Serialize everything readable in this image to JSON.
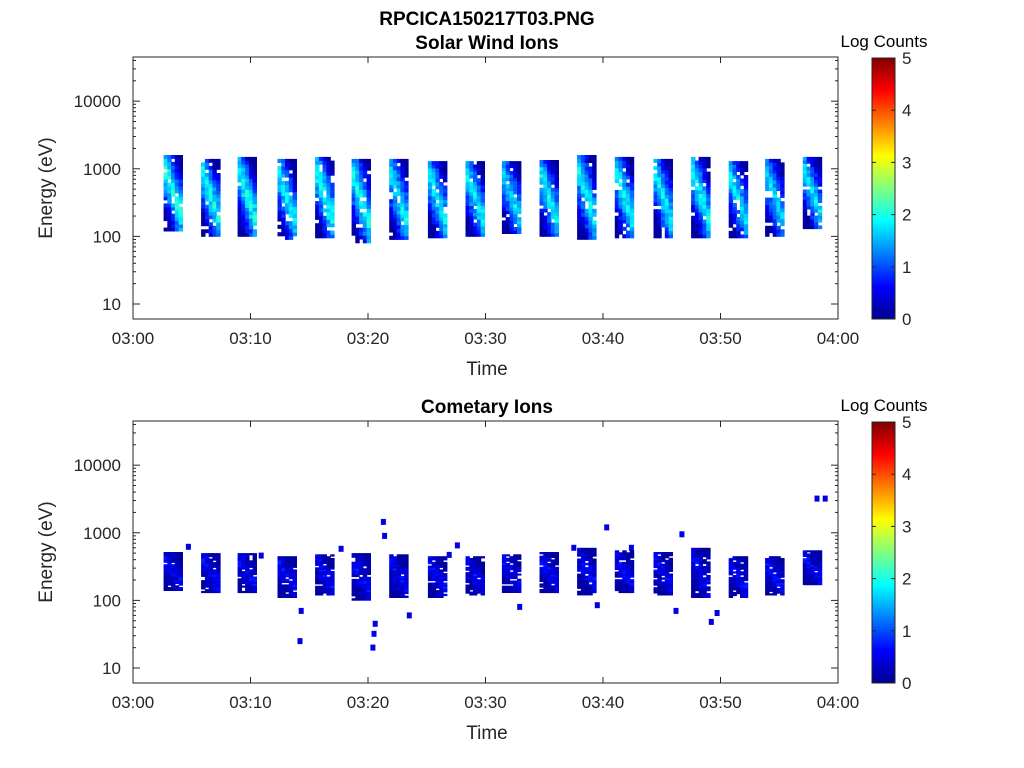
{
  "figure": {
    "title": "RPCICA150217T03.PNG"
  },
  "chart_data": [
    {
      "type": "heatmap",
      "title": "Solar Wind Ions",
      "xlabel": "Time",
      "ylabel": "Energy (eV)",
      "x_ticks": [
        "03:00",
        "03:10",
        "03:20",
        "03:30",
        "03:40",
        "03:50",
        "04:00"
      ],
      "x_range_minutes": [
        0,
        60
      ],
      "y_scale": "log",
      "y_ticks": [
        "10",
        "100",
        "1000",
        "10000"
      ],
      "y_range": [
        6,
        45000
      ],
      "colorbar": {
        "label": "Log Counts",
        "range": [
          0,
          5
        ],
        "ticks": [
          "0",
          "1",
          "2",
          "3",
          "4",
          "5"
        ],
        "colormap": "jet"
      },
      "grid": false,
      "scans": [
        {
          "start_min": 2.6,
          "emin": 120,
          "emax": 1600,
          "peak": 2.1
        },
        {
          "start_min": 5.8,
          "emin": 100,
          "emax": 1400,
          "peak": 2.0
        },
        {
          "start_min": 8.9,
          "emin": 100,
          "emax": 1500,
          "peak": 2.0
        },
        {
          "start_min": 12.3,
          "emin": 90,
          "emax": 1400,
          "peak": 1.9
        },
        {
          "start_min": 15.5,
          "emin": 95,
          "emax": 1500,
          "peak": 2.0
        },
        {
          "start_min": 18.6,
          "emin": 80,
          "emax": 1400,
          "peak": 2.0
        },
        {
          "start_min": 21.8,
          "emin": 90,
          "emax": 1400,
          "peak": 1.9
        },
        {
          "start_min": 25.1,
          "emin": 95,
          "emax": 1300,
          "peak": 1.9
        },
        {
          "start_min": 28.3,
          "emin": 100,
          "emax": 1300,
          "peak": 1.9
        },
        {
          "start_min": 31.4,
          "emin": 110,
          "emax": 1300,
          "peak": 1.8
        },
        {
          "start_min": 34.6,
          "emin": 100,
          "emax": 1350,
          "peak": 1.9
        },
        {
          "start_min": 37.8,
          "emin": 90,
          "emax": 1600,
          "peak": 1.9
        },
        {
          "start_min": 41.0,
          "emin": 95,
          "emax": 1500,
          "peak": 1.9
        },
        {
          "start_min": 44.3,
          "emin": 95,
          "emax": 1400,
          "peak": 1.9
        },
        {
          "start_min": 47.5,
          "emin": 95,
          "emax": 1500,
          "peak": 1.9
        },
        {
          "start_min": 50.7,
          "emin": 95,
          "emax": 1300,
          "peak": 1.8
        },
        {
          "start_min": 53.8,
          "emin": 100,
          "emax": 1400,
          "peak": 1.7
        },
        {
          "start_min": 57.0,
          "emin": 130,
          "emax": 1500,
          "peak": 1.8
        }
      ]
    },
    {
      "type": "heatmap",
      "title": "Cometary Ions",
      "xlabel": "Time",
      "ylabel": "Energy (eV)",
      "x_ticks": [
        "03:00",
        "03:10",
        "03:20",
        "03:30",
        "03:40",
        "03:50",
        "04:00"
      ],
      "x_range_minutes": [
        0,
        60
      ],
      "y_scale": "log",
      "y_ticks": [
        "10",
        "100",
        "1000",
        "10000"
      ],
      "y_range": [
        6,
        45000
      ],
      "colorbar": {
        "label": "Log Counts",
        "range": [
          0,
          5
        ],
        "ticks": [
          "0",
          "1",
          "2",
          "3",
          "4",
          "5"
        ],
        "colormap": "jet"
      },
      "grid": false,
      "scans": [
        {
          "start_min": 2.6,
          "emin": 140,
          "emax": 520,
          "peak": 0.6
        },
        {
          "start_min": 5.8,
          "emin": 130,
          "emax": 500,
          "peak": 0.6
        },
        {
          "start_min": 8.9,
          "emin": 130,
          "emax": 500,
          "peak": 0.6
        },
        {
          "start_min": 12.3,
          "emin": 110,
          "emax": 450,
          "peak": 0.6
        },
        {
          "start_min": 15.5,
          "emin": 120,
          "emax": 480,
          "peak": 0.6
        },
        {
          "start_min": 18.6,
          "emin": 100,
          "emax": 500,
          "peak": 0.6
        },
        {
          "start_min": 21.8,
          "emin": 110,
          "emax": 480,
          "peak": 0.6
        },
        {
          "start_min": 25.1,
          "emin": 110,
          "emax": 450,
          "peak": 0.6
        },
        {
          "start_min": 28.3,
          "emin": 120,
          "emax": 450,
          "peak": 0.6
        },
        {
          "start_min": 31.4,
          "emin": 130,
          "emax": 480,
          "peak": 0.6
        },
        {
          "start_min": 34.6,
          "emin": 130,
          "emax": 520,
          "peak": 0.6
        },
        {
          "start_min": 37.8,
          "emin": 120,
          "emax": 600,
          "peak": 0.6
        },
        {
          "start_min": 41.0,
          "emin": 130,
          "emax": 550,
          "peak": 0.6
        },
        {
          "start_min": 44.3,
          "emin": 120,
          "emax": 520,
          "peak": 0.6
        },
        {
          "start_min": 47.5,
          "emin": 110,
          "emax": 600,
          "peak": 0.6
        },
        {
          "start_min": 50.7,
          "emin": 110,
          "emax": 450,
          "peak": 0.6
        },
        {
          "start_min": 53.8,
          "emin": 120,
          "emax": 450,
          "peak": 0.6
        },
        {
          "start_min": 57.0,
          "emin": 170,
          "emax": 550,
          "peak": 0.6
        }
      ],
      "sparse_points": [
        {
          "min": 4.5,
          "ev": 620
        },
        {
          "min": 10.7,
          "ev": 460
        },
        {
          "min": 14.0,
          "ev": 25
        },
        {
          "min": 14.1,
          "ev": 70
        },
        {
          "min": 17.5,
          "ev": 580
        },
        {
          "min": 20.2,
          "ev": 20
        },
        {
          "min": 20.3,
          "ev": 32
        },
        {
          "min": 20.4,
          "ev": 45
        },
        {
          "min": 21.1,
          "ev": 1450
        },
        {
          "min": 21.2,
          "ev": 900
        },
        {
          "min": 23.3,
          "ev": 60
        },
        {
          "min": 26.7,
          "ev": 470
        },
        {
          "min": 27.4,
          "ev": 650
        },
        {
          "min": 32.7,
          "ev": 80
        },
        {
          "min": 37.3,
          "ev": 600
        },
        {
          "min": 39.3,
          "ev": 85
        },
        {
          "min": 40.1,
          "ev": 1200
        },
        {
          "min": 42.2,
          "ev": 600
        },
        {
          "min": 46.5,
          "ev": 950
        },
        {
          "min": 46.0,
          "ev": 70
        },
        {
          "min": 49.0,
          "ev": 48
        },
        {
          "min": 49.5,
          "ev": 65
        },
        {
          "min": 58.0,
          "ev": 3200
        },
        {
          "min": 58.7,
          "ev": 3200
        }
      ]
    }
  ]
}
